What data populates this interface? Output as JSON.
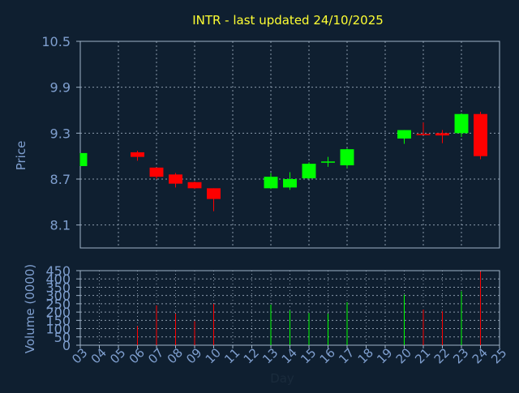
{
  "colors": {
    "background": "#0f1f30",
    "title": "#ffff33",
    "axis_text": "#7f9fcf",
    "day_text": "#1a2b3c",
    "frame": "#9fb3c8",
    "grid": "#8a99aa",
    "up": "#00ff00",
    "down": "#ff0000"
  },
  "chart_data": [
    {
      "type": "candlestick",
      "title": "INTR - last updated 24/10/2025",
      "ylabel": "Price",
      "ylim": [
        7.8,
        10.5
      ],
      "y_ticks": [
        "8.1",
        "8.7",
        "9.3",
        "9.9",
        "10.5"
      ],
      "x_ticks": [
        "03",
        "04",
        "05",
        "06",
        "07",
        "08",
        "09",
        "10",
        "11",
        "12",
        "13",
        "14",
        "15",
        "16",
        "17",
        "18",
        "19",
        "20",
        "21",
        "22",
        "23",
        "24",
        "25"
      ],
      "grid": true,
      "candles": [
        {
          "day": "03",
          "open": 8.87,
          "high": 9.04,
          "low": 8.87,
          "close": 9.04
        },
        {
          "day": "06",
          "open": 9.05,
          "high": 9.07,
          "low": 8.94,
          "close": 8.99
        },
        {
          "day": "07",
          "open": 8.85,
          "high": 8.85,
          "low": 8.7,
          "close": 8.73
        },
        {
          "day": "08",
          "open": 8.76,
          "high": 8.78,
          "low": 8.59,
          "close": 8.64
        },
        {
          "day": "09",
          "open": 8.66,
          "high": 8.67,
          "low": 8.57,
          "close": 8.58
        },
        {
          "day": "10",
          "open": 8.58,
          "high": 8.58,
          "low": 8.28,
          "close": 8.44
        },
        {
          "day": "13",
          "open": 8.58,
          "high": 8.78,
          "low": 8.57,
          "close": 8.73
        },
        {
          "day": "14",
          "open": 8.59,
          "high": 8.79,
          "low": 8.56,
          "close": 8.7
        },
        {
          "day": "15",
          "open": 8.71,
          "high": 8.92,
          "low": 8.7,
          "close": 8.9
        },
        {
          "day": "16",
          "open": 8.92,
          "high": 8.99,
          "low": 8.86,
          "close": 8.93
        },
        {
          "day": "17",
          "open": 8.88,
          "high": 9.1,
          "low": 8.84,
          "close": 9.09
        },
        {
          "day": "20",
          "open": 9.23,
          "high": 9.34,
          "low": 9.16,
          "close": 9.34
        },
        {
          "day": "21",
          "open": 9.29,
          "high": 9.44,
          "low": 9.28,
          "close": 9.28
        },
        {
          "day": "22",
          "open": 9.3,
          "high": 9.34,
          "low": 9.17,
          "close": 9.27
        },
        {
          "day": "23",
          "open": 9.3,
          "high": 9.56,
          "low": 9.25,
          "close": 9.55
        },
        {
          "day": "24",
          "open": 9.55,
          "high": 9.58,
          "low": 8.96,
          "close": 9.0
        }
      ]
    },
    {
      "type": "bar",
      "xlabel": "Day",
      "ylabel": "Volume (0000)",
      "ylim": [
        0,
        450
      ],
      "y_ticks": [
        "0",
        "50",
        "100",
        "150",
        "200",
        "250",
        "300",
        "350",
        "400",
        "450"
      ],
      "x_ticks": [
        "03",
        "04",
        "05",
        "06",
        "07",
        "08",
        "09",
        "10",
        "11",
        "12",
        "13",
        "14",
        "15",
        "16",
        "17",
        "18",
        "19",
        "20",
        "21",
        "22",
        "23",
        "24",
        "25"
      ],
      "grid": true,
      "bars": [
        {
          "day": "06",
          "value": 115,
          "direction": "down"
        },
        {
          "day": "07",
          "value": 240,
          "direction": "down"
        },
        {
          "day": "08",
          "value": 190,
          "direction": "down"
        },
        {
          "day": "09",
          "value": 145,
          "direction": "down"
        },
        {
          "day": "10",
          "value": 250,
          "direction": "down"
        },
        {
          "day": "13",
          "value": 245,
          "direction": "up"
        },
        {
          "day": "14",
          "value": 210,
          "direction": "up"
        },
        {
          "day": "15",
          "value": 195,
          "direction": "up"
        },
        {
          "day": "16",
          "value": 190,
          "direction": "up"
        },
        {
          "day": "17",
          "value": 260,
          "direction": "up"
        },
        {
          "day": "20",
          "value": 305,
          "direction": "up"
        },
        {
          "day": "21",
          "value": 215,
          "direction": "down"
        },
        {
          "day": "22",
          "value": 205,
          "direction": "down"
        },
        {
          "day": "23",
          "value": 325,
          "direction": "up"
        },
        {
          "day": "24",
          "value": 445,
          "direction": "down"
        }
      ]
    }
  ]
}
